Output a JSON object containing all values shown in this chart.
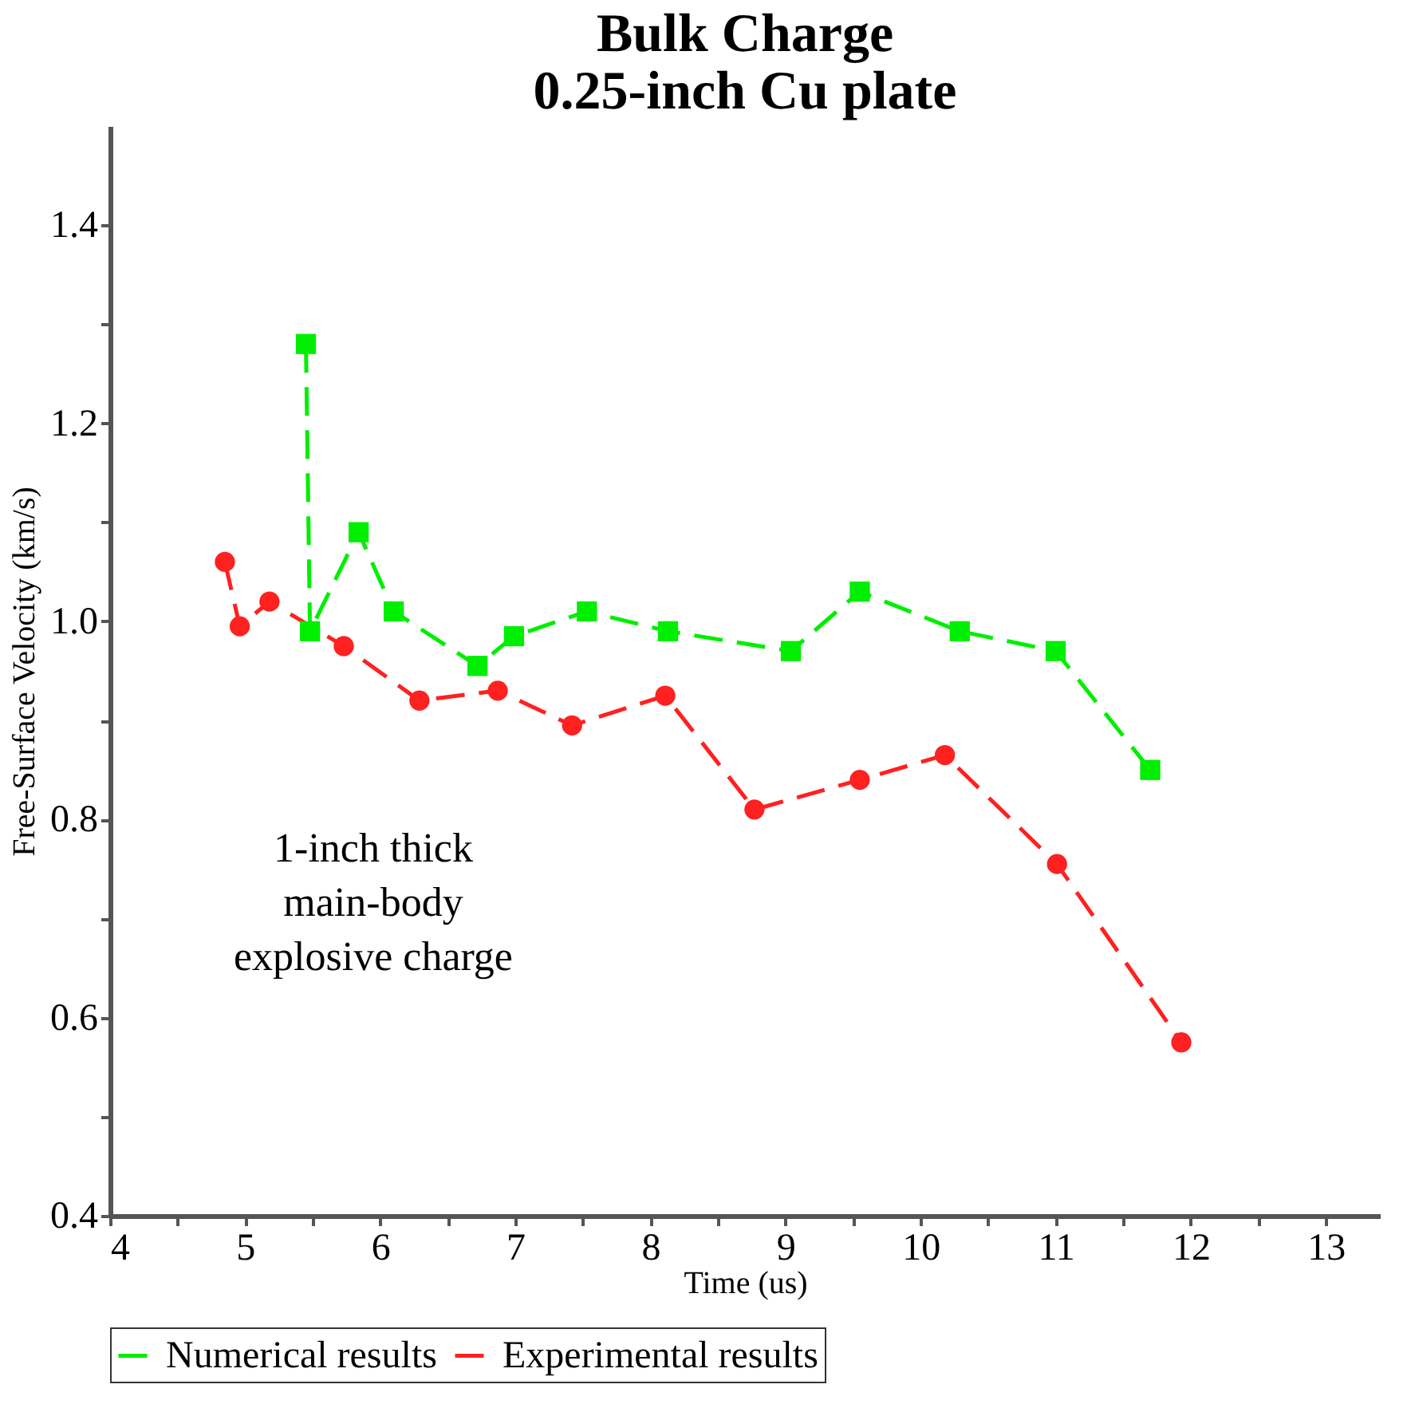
{
  "chart_data": {
    "type": "line",
    "title": "Bulk Charge\n0.25-inch Cu plate",
    "xlabel": "Time (us)",
    "ylabel": "Free-Surface Velocity (km/s)",
    "xlim": [
      4,
      13.4
    ],
    "ylim": [
      0.4,
      1.5
    ],
    "xticks": [
      4,
      {
        "value": 4.5,
        "label": null
      },
      5,
      {
        "value": 5.5,
        "label": null
      },
      6,
      {
        "value": 6.5,
        "label": null
      },
      7,
      {
        "value": 7.5,
        "label": null
      },
      8,
      {
        "value": 8.5,
        "label": null
      },
      9,
      {
        "value": 9.5,
        "label": null
      },
      10,
      {
        "value": 10.5,
        "label": null
      },
      11,
      {
        "value": 11.5,
        "label": null
      },
      12,
      {
        "value": 12.5,
        "label": null
      },
      13
    ],
    "yticks": [
      0.4,
      {
        "value": 0.5,
        "label": null
      },
      0.6,
      {
        "value": 0.7,
        "label": null
      },
      0.8,
      {
        "value": 0.9,
        "label": null
      },
      {
        "value": 1.0,
        "label": "1.0"
      },
      {
        "value": 1.1,
        "label": null
      },
      1.2,
      {
        "value": 1.3,
        "label": null
      },
      1.4
    ],
    "grid": false,
    "legend": "bottom",
    "line_style": "dashed",
    "annotations": [
      "1-inch thick\nmain-body\nexplosive charge"
    ],
    "series": [
      {
        "name": "Numerical results",
        "color": "#00ee00",
        "marker": "square",
        "x": [
          5.45,
          5.48,
          5.84,
          6.1,
          6.72,
          6.99,
          7.53,
          8.13,
          9.04,
          9.55,
          10.29,
          11.0,
          11.7
        ],
        "values": [
          1.28,
          0.99,
          1.09,
          1.01,
          0.955,
          0.985,
          1.01,
          0.99,
          0.97,
          1.03,
          0.99,
          0.97,
          0.85
        ]
      },
      {
        "name": "Experimental results",
        "color": "#ff2020",
        "marker": "circle",
        "x": [
          4.85,
          4.96,
          5.18,
          5.73,
          6.29,
          6.87,
          7.42,
          8.11,
          8.77,
          9.55,
          10.18,
          11.01,
          11.93
        ],
        "values": [
          1.06,
          0.995,
          1.02,
          0.975,
          0.92,
          0.93,
          0.895,
          0.925,
          0.81,
          0.84,
          0.865,
          0.755,
          0.575
        ]
      }
    ]
  }
}
